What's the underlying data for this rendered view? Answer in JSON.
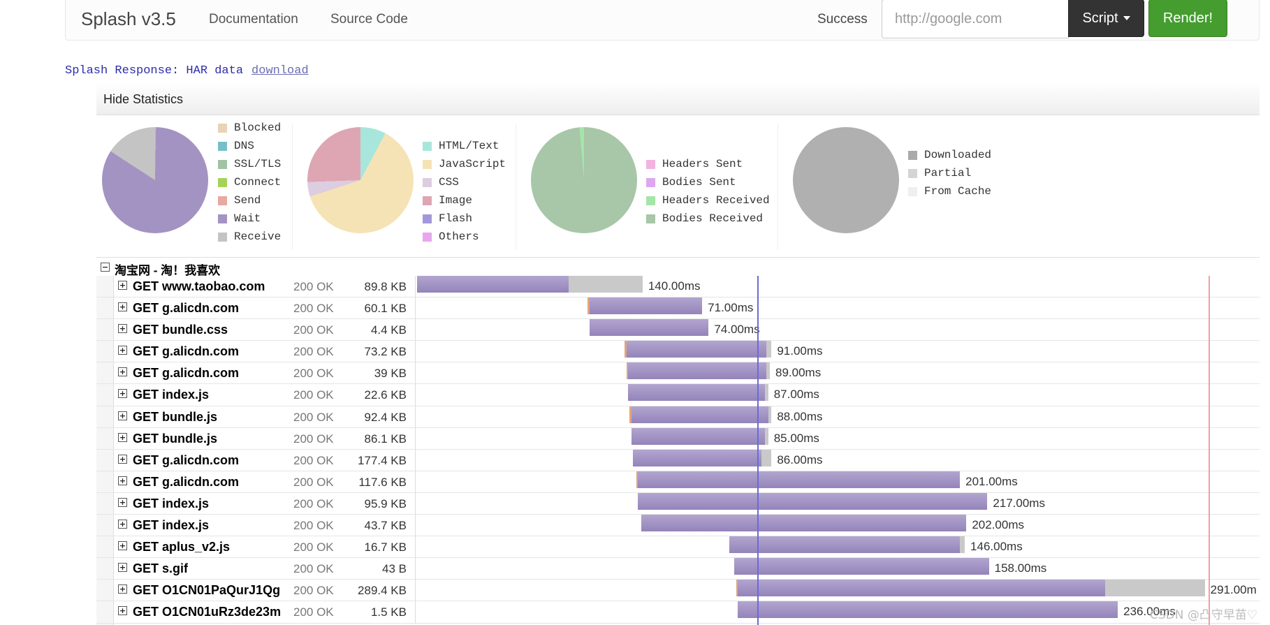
{
  "navbar": {
    "brand": "Splash v3.5",
    "links": [
      "Documentation",
      "Source Code"
    ],
    "status": "Success",
    "url_placeholder": "http://google.com",
    "script_label": "Script",
    "render_label": "Render!"
  },
  "response": {
    "label": "Splash Response: HAR data",
    "download": "download"
  },
  "har": {
    "toggle_stats": "Hide Statistics",
    "stats": [
      {
        "legend": [
          {
            "label": "Blocked",
            "color": "#e6d4b4"
          },
          {
            "label": "DNS",
            "color": "#76bfc9"
          },
          {
            "label": "SSL/TLS",
            "color": "#a2c2a4"
          },
          {
            "label": "Connect",
            "color": "#a5d35a"
          },
          {
            "label": "Send",
            "color": "#e8a9a0"
          },
          {
            "label": "Wait",
            "color": "#a393c2"
          },
          {
            "label": "Receive",
            "color": "#c4c4c4"
          }
        ]
      },
      {
        "legend": [
          {
            "label": "HTML/Text",
            "color": "#a8e6db"
          },
          {
            "label": "JavaScript",
            "color": "#f5e3b5"
          },
          {
            "label": "CSS",
            "color": "#dccde0"
          },
          {
            "label": "Image",
            "color": "#dea6b2"
          },
          {
            "label": "Flash",
            "color": "#a198dc"
          },
          {
            "label": "Others",
            "color": "#e9a6ef"
          }
        ]
      },
      {
        "legend": [
          {
            "label": "Headers Sent",
            "color": "#f3b3df"
          },
          {
            "label": "Bodies Sent",
            "color": "#dea6ef"
          },
          {
            "label": "Headers Received",
            "color": "#a5e6a8"
          },
          {
            "label": "Bodies Received",
            "color": "#a8c6a8"
          }
        ]
      },
      {
        "legend": [
          {
            "label": "Downloaded",
            "color": "#aaaaaa"
          },
          {
            "label": "Partial",
            "color": "#d4d4d4"
          },
          {
            "label": "From Cache",
            "color": "#efefef"
          }
        ]
      }
    ],
    "page_title": "淘宝网 - 淘！我喜欢",
    "requests": [
      {
        "url": "GET www.taobao.com",
        "status": "200 OK",
        "size": "89.8 KB",
        "time": "140.00ms",
        "start_ms": 0,
        "pre_ms": 0,
        "wait_ms": 94,
        "recv_ms": 46
      },
      {
        "url": "GET g.alicdn.com",
        "status": "200 OK",
        "size": "60.1 KB",
        "time": "71.00ms",
        "start_ms": 106,
        "pre_ms": 1,
        "wait_ms": 70,
        "recv_ms": 0
      },
      {
        "url": "GET bundle.css",
        "status": "200 OK",
        "size": "4.4 KB",
        "time": "74.00ms",
        "start_ms": 107,
        "pre_ms": 0,
        "wait_ms": 74,
        "recv_ms": 0
      },
      {
        "url": "GET g.alicdn.com",
        "status": "200 OK",
        "size": "73.2 KB",
        "time": "91.00ms",
        "start_ms": 129,
        "pre_ms": 1,
        "wait_ms": 87,
        "recv_ms": 3
      },
      {
        "url": "GET g.alicdn.com",
        "status": "200 OK",
        "size": "39 KB",
        "time": "89.00ms",
        "start_ms": 130,
        "pre_ms": 1,
        "wait_ms": 86,
        "recv_ms": 2
      },
      {
        "url": "GET index.js",
        "status": "200 OK",
        "size": "22.6 KB",
        "time": "87.00ms",
        "start_ms": 131,
        "pre_ms": 0,
        "wait_ms": 85,
        "recv_ms": 2
      },
      {
        "url": "GET bundle.js",
        "status": "200 OK",
        "size": "92.4 KB",
        "time": "88.00ms",
        "start_ms": 132,
        "pre_ms": 1,
        "wait_ms": 85,
        "recv_ms": 2
      },
      {
        "url": "GET bundle.js",
        "status": "200 OK",
        "size": "86.1 KB",
        "time": "85.00ms",
        "start_ms": 133,
        "pre_ms": 0,
        "wait_ms": 83,
        "recv_ms": 2
      },
      {
        "url": "GET g.alicdn.com",
        "status": "200 OK",
        "size": "177.4 KB",
        "time": "86.00ms",
        "start_ms": 134,
        "pre_ms": 0,
        "wait_ms": 80,
        "recv_ms": 6
      },
      {
        "url": "GET g.alicdn.com",
        "status": "200 OK",
        "size": "117.6 KB",
        "time": "201.00ms",
        "start_ms": 136,
        "pre_ms": 1,
        "wait_ms": 200,
        "recv_ms": 0
      },
      {
        "url": "GET index.js",
        "status": "200 OK",
        "size": "95.9 KB",
        "time": "217.00ms",
        "start_ms": 137,
        "pre_ms": 0,
        "wait_ms": 217,
        "recv_ms": 0
      },
      {
        "url": "GET index.js",
        "status": "200 OK",
        "size": "43.7 KB",
        "time": "202.00ms",
        "start_ms": 139,
        "pre_ms": 0,
        "wait_ms": 202,
        "recv_ms": 0
      },
      {
        "url": "GET aplus_v2.js",
        "status": "200 OK",
        "size": "16.7 KB",
        "time": "146.00ms",
        "start_ms": 194,
        "pre_ms": 0,
        "wait_ms": 143,
        "recv_ms": 3
      },
      {
        "url": "GET s.gif",
        "status": "200 OK",
        "size": "43 B",
        "time": "158.00ms",
        "start_ms": 197,
        "pre_ms": 0,
        "wait_ms": 158,
        "recv_ms": 0
      },
      {
        "url": "GET O1CN01PaQurJ1Qg",
        "status": "200 OK",
        "size": "289.4 KB",
        "time": "291.00m",
        "start_ms": 198,
        "pre_ms": 1,
        "wait_ms": 228,
        "recv_ms": 62
      },
      {
        "url": "GET O1CN01uRz3de23m",
        "status": "200 OK",
        "size": "1.5 KB",
        "time": "236.00ms",
        "start_ms": 199,
        "pre_ms": 0,
        "wait_ms": 236,
        "recv_ms": 0
      }
    ]
  },
  "watermark": "CSDN @凸守早苗♡"
}
